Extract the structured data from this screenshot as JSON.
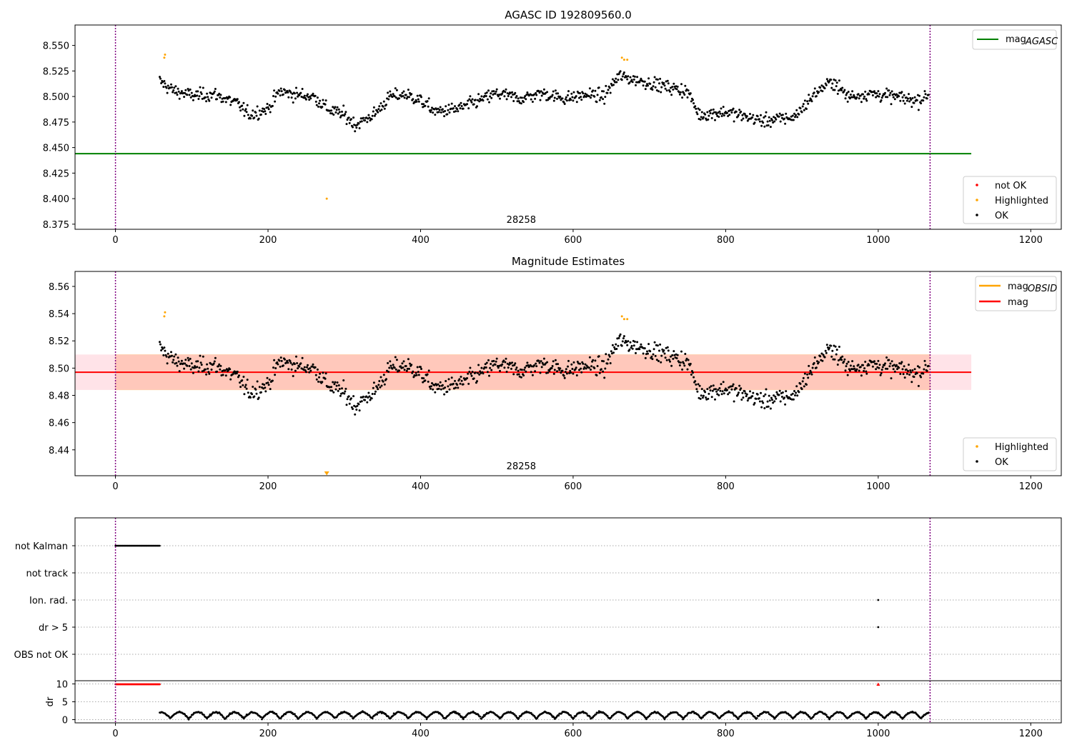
{
  "colors": {
    "ok": "#000000",
    "highlighted": "#ffa500",
    "not_ok": "#ff0000",
    "agasc": "#008000",
    "mag": "#ff0000",
    "mag_obsid": "#ffa500",
    "band": "#ffc0cb",
    "band_inner": "#ffa07a",
    "vline": "#800080"
  },
  "chart_data": [
    {
      "type": "scatter",
      "title": "AGASC ID 192809560.0",
      "xlim": [
        -53,
        1240
      ],
      "ylim": [
        8.37,
        8.57
      ],
      "xticks": [
        "0",
        "200",
        "400",
        "600",
        "800",
        "1000",
        "1200"
      ],
      "yticks": [
        "8.375",
        "8.400",
        "8.425",
        "8.450",
        "8.475",
        "8.500",
        "8.525",
        "8.550"
      ],
      "obsid_label": "28258",
      "obsid_label_x": 532,
      "obs_bounds": [
        0,
        1068
      ],
      "agasc_mag": 8.444,
      "agasc_mag_x": [
        -53,
        1122
      ],
      "legend_lines": [
        {
          "label": "mag",
          "sub": "AGASC",
          "color": "#008000"
        }
      ],
      "legend_points": [
        {
          "label": "not OK",
          "color": "#ff0000"
        },
        {
          "label": "Highlighted",
          "color": "#ffa500"
        },
        {
          "label": "OK",
          "color": "#000000"
        }
      ],
      "highlighted_points": [
        [
          64,
          8.538
        ],
        [
          65,
          8.541
        ],
        [
          664,
          8.538
        ],
        [
          667,
          8.536
        ],
        [
          671,
          8.536
        ],
        [
          277,
          8.4
        ]
      ],
      "series_segments": [
        {
          "x": [
            58,
            75,
            100,
            130,
            160,
            175,
            200,
            215,
            235,
            260,
            280,
            300,
            315,
            340,
            360,
            380,
            400,
            420,
            450,
            470,
            500,
            530,
            560,
            590,
            620,
            640,
            660,
            690,
            720,
            750,
            765,
            800,
            850,
            890,
            920,
            940,
            960,
            990,
            1020,
            1050,
            1066
          ],
          "y": [
            8.515,
            8.506,
            8.501,
            8.502,
            8.493,
            8.482,
            8.488,
            8.505,
            8.502,
            8.5,
            8.487,
            8.482,
            8.472,
            8.483,
            8.5,
            8.502,
            8.496,
            8.485,
            8.488,
            8.494,
            8.503,
            8.498,
            8.503,
            8.498,
            8.502,
            8.5,
            8.52,
            8.515,
            8.51,
            8.505,
            8.482,
            8.485,
            8.476,
            8.48,
            8.505,
            8.515,
            8.5,
            8.503,
            8.5,
            8.496,
            8.501
          ]
        }
      ]
    },
    {
      "type": "scatter",
      "title": "Magnitude Estimates",
      "xlim": [
        -53,
        1240
      ],
      "ylim": [
        8.421,
        8.571
      ],
      "xticks": [
        "0",
        "200",
        "400",
        "600",
        "800",
        "1000",
        "1200"
      ],
      "yticks": [
        "8.44",
        "8.46",
        "8.48",
        "8.50",
        "8.52",
        "8.54",
        "8.56"
      ],
      "obsid_label": "28258",
      "obsid_label_x": 532,
      "obs_bounds": [
        0,
        1068
      ],
      "mag": 8.497,
      "mag_x": [
        -53,
        1122
      ],
      "band_outer": [
        8.484,
        8.51
      ],
      "band_inner_x": [
        0,
        1068
      ],
      "legend_lines": [
        {
          "label": "mag",
          "sub": "OBSID",
          "color": "#ffa500"
        },
        {
          "label": "mag",
          "sub": "",
          "color": "#ff0000"
        }
      ],
      "legend_points": [
        {
          "label": "Highlighted",
          "color": "#ffa500"
        },
        {
          "label": "OK",
          "color": "#000000"
        }
      ],
      "highlighted_points": [
        [
          64,
          8.538
        ],
        [
          65,
          8.541
        ],
        [
          664,
          8.538
        ],
        [
          667,
          8.536
        ],
        [
          671,
          8.536
        ]
      ],
      "offscale_marker_x": 277
    },
    {
      "type": "scatter",
      "title": "",
      "xlim": [
        -53,
        1240
      ],
      "xticks": [
        "0",
        "200",
        "400",
        "600",
        "800",
        "1000",
        "1200"
      ],
      "flag_rows": [
        "not Kalman",
        "not track",
        "Ion. rad.",
        "dr > 5",
        "OBS not OK"
      ],
      "flag_points": {
        "not Kalman": {
          "x_start": 0,
          "x_end": 58
        },
        "Ion. rad.": {
          "x": [
            1000
          ]
        },
        "dr > 5": {
          "x": [
            1000
          ]
        }
      },
      "dr_ylabel": "dr",
      "dr_yticks": [
        "0",
        "5",
        "10"
      ],
      "dr_ylim": [
        -0.5,
        10.5
      ],
      "dr_red": {
        "x_start": 0,
        "x_end": 58,
        "value": 9.9,
        "spike_x": 1000
      },
      "obs_bounds": [
        0,
        1068
      ]
    }
  ]
}
